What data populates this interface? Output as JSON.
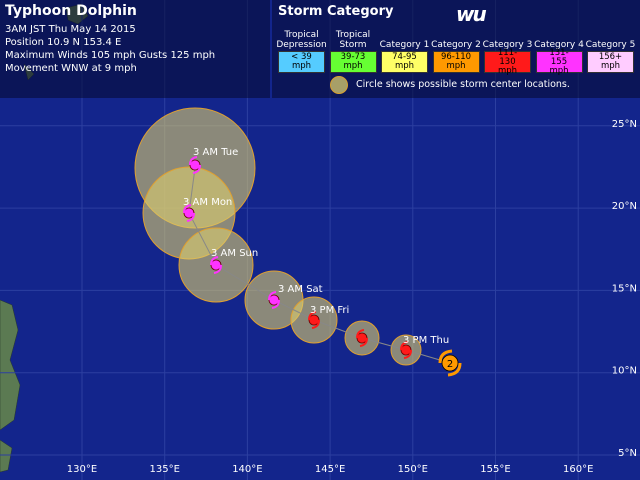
{
  "header": {
    "title": "Typhoon Dolphin",
    "lines": [
      "3AM JST Thu May 14 2015",
      "Position 10.9 N 153.4 E",
      "Maximum Winds 105 mph  Gusts 125 mph",
      "Movement WNW at 9 mph"
    ]
  },
  "legend": {
    "title": "Storm Category",
    "logo": "wu",
    "categories": [
      {
        "name": "Tropical Depression",
        "range": "< 39 mph",
        "color": "#55ccff"
      },
      {
        "name": "Tropical Storm",
        "range": "39-73 mph",
        "color": "#66ff33"
      },
      {
        "name": "Category 1",
        "range": "74-95 mph",
        "color": "#ffff66"
      },
      {
        "name": "Category 2",
        "range": "96-110 mph",
        "color": "#ff9900"
      },
      {
        "name": "Category 3",
        "range": "111-130 mph",
        "color": "#ff1a1a"
      },
      {
        "name": "Category 4",
        "range": "131-155 mph",
        "color": "#ff33ff"
      },
      {
        "name": "Category 5",
        "range": "156+ mph",
        "color": "#ffccff"
      }
    ],
    "note": "Circle shows possible storm center locations."
  },
  "track": {
    "points": [
      {
        "label": "3 PM Thu",
        "color": "#ff1a1a"
      },
      {
        "label": "3 PM Fri",
        "color": "#ff1a1a"
      },
      {
        "label": "3 AM Sat",
        "color": "#ff33ff"
      },
      {
        "label": "3 AM Sun",
        "color": "#ff33ff"
      },
      {
        "label": "3 AM Mon",
        "color": "#ff33ff"
      },
      {
        "label": "3 AM Tue",
        "color": "#ff33ff"
      }
    ],
    "current": {
      "label": "2",
      "color": "#ff9900"
    }
  },
  "grid": {
    "latitudes": [
      "5°N",
      "10°N",
      "15°N",
      "20°N",
      "25°N"
    ],
    "longitudes": [
      "130°E",
      "135°E",
      "140°E",
      "145°E",
      "150°E",
      "155°E",
      "160°E"
    ]
  }
}
